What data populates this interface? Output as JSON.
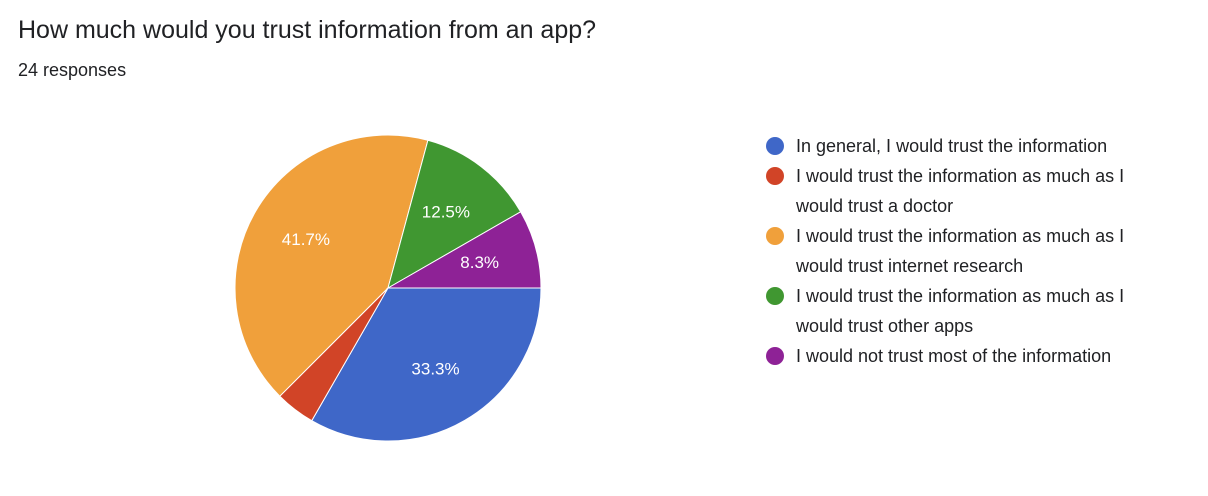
{
  "chart_data": {
    "type": "pie",
    "title": "How much would you trust information from an app?",
    "subtitle": "24 responses",
    "categories": [
      "In general, I would trust the information",
      "I would trust the information as much as I would trust a doctor",
      "I would trust the information as much as I would trust internet research",
      "I would trust the information as much as I would trust other apps",
      "I would not trust most of the information"
    ],
    "values": [
      33.3,
      4.2,
      41.7,
      12.5,
      8.3
    ],
    "value_labels": [
      "33.3%",
      null,
      "41.7%",
      "12.5%",
      "8.3%"
    ],
    "colors": [
      "#3f67c8",
      "#d14427",
      "#f0a03b",
      "#409731",
      "#8e2296"
    ]
  }
}
